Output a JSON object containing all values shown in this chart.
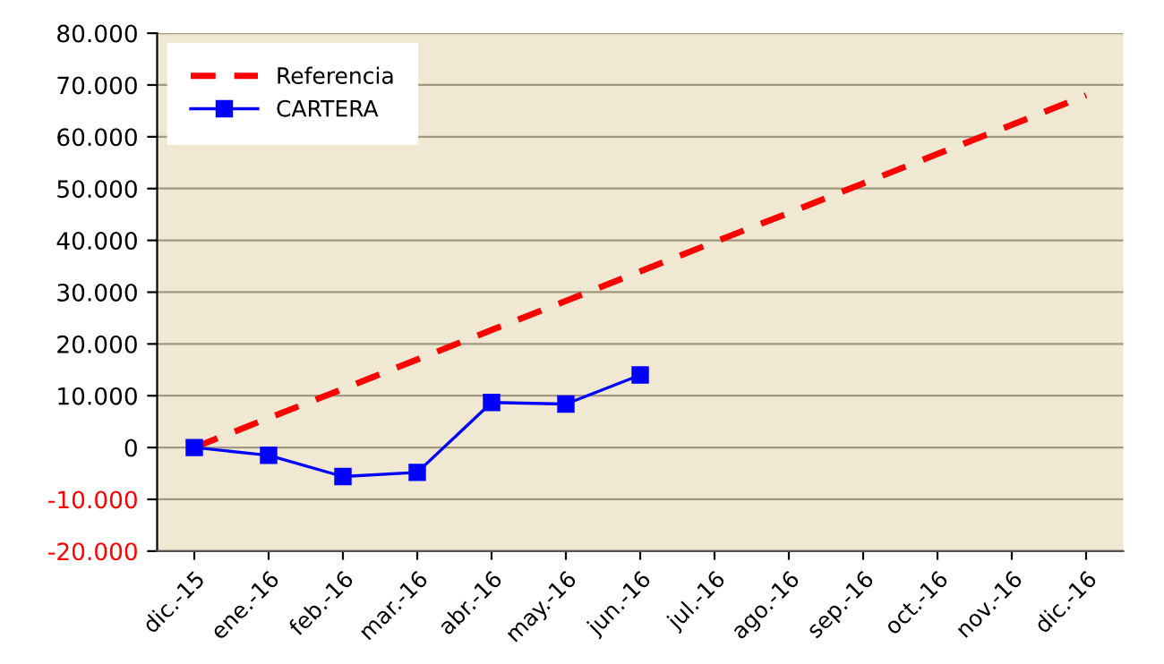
{
  "chart_data": {
    "type": "line",
    "categories": [
      "dic.-15",
      "ene.-16",
      "feb.-16",
      "mar.-16",
      "abr.-16",
      "may.-16",
      "jun.-16",
      "jul.-16",
      "ago.-16",
      "sep.-16",
      "oct.-16",
      "nov.-16",
      "dic.-16"
    ],
    "series": [
      {
        "name": "Referencia",
        "color": "#ff0000",
        "line_style": "dashed",
        "marker": "none",
        "values": [
          0,
          5700,
          11300,
          17000,
          22700,
          28300,
          34000,
          39700,
          45300,
          51000,
          56700,
          62300,
          68000
        ]
      },
      {
        "name": "CARTERA",
        "color": "#0000ff",
        "line_style": "solid",
        "marker": "square",
        "values": [
          0,
          -1500,
          -5600,
          -4800,
          8700,
          8400,
          14000,
          null,
          null,
          null,
          null,
          null,
          null
        ]
      }
    ],
    "ylim": [
      -20000,
      80000
    ],
    "yticks": [
      {
        "value": -20000,
        "label": "-20.000"
      },
      {
        "value": -10000,
        "label": "-10.000"
      },
      0,
      {
        "value": 10000,
        "label": "10.000"
      },
      {
        "value": 20000,
        "label": "20.000"
      },
      {
        "value": 30000,
        "label": "30.000"
      },
      {
        "value": 40000,
        "label": "40.000"
      },
      {
        "value": 50000,
        "label": "50.000"
      },
      {
        "value": 60000,
        "label": "60.000"
      },
      {
        "value": 70000,
        "label": "70.000"
      },
      {
        "value": 80000,
        "label": "80.000"
      }
    ],
    "grid": "y",
    "legend": "top left"
  }
}
